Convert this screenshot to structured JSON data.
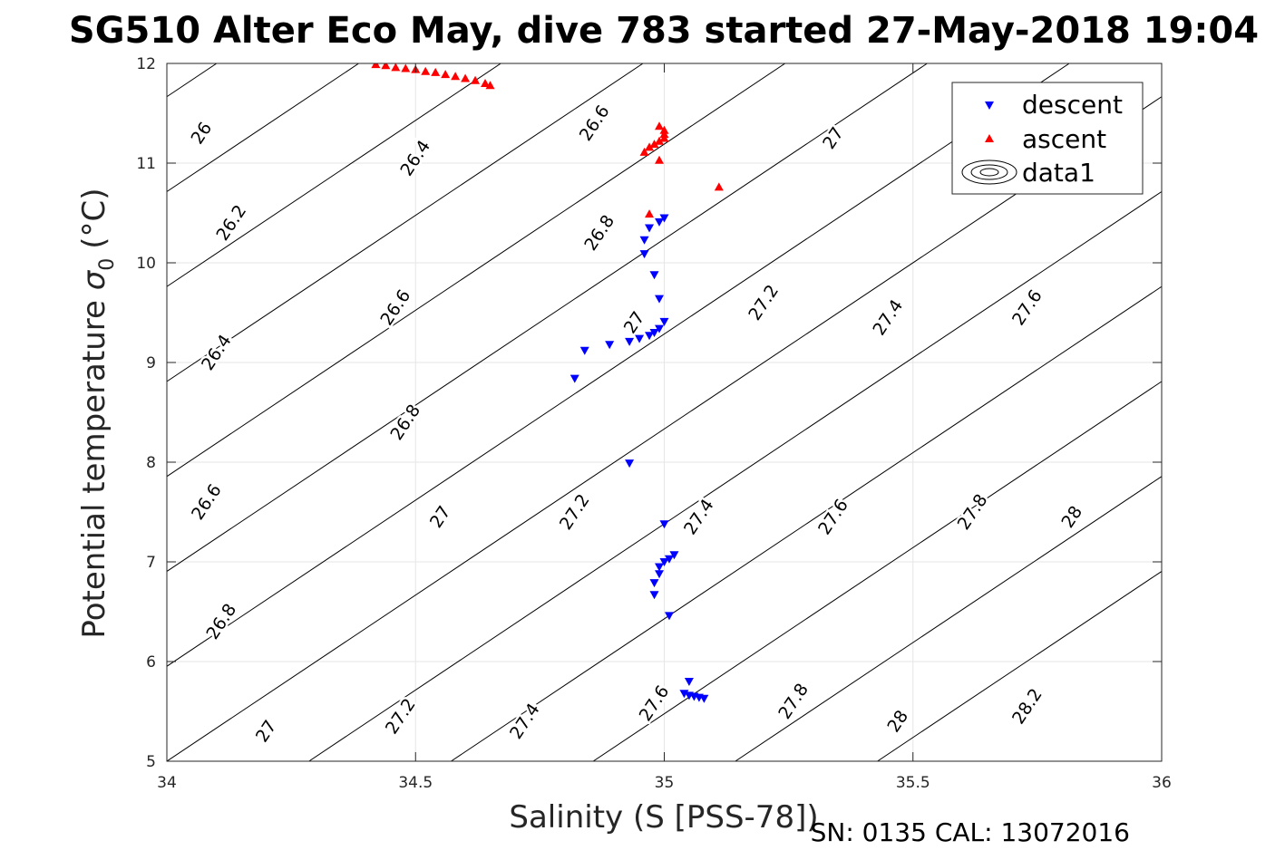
{
  "chart_data": {
    "type": "scatter",
    "title": "SG510 Alter Eco May, dive 783 started 27-May-2018 19:04",
    "xlabel": "Salinity (S [PSS-78])",
    "ylabel": "Potential temperature",
    "ylabel_symbol": "σ",
    "ylabel_subscript": "0",
    "ylabel_unit": "(°C)",
    "footnote": "SN: 0135  CAL: 13072016",
    "xlim": [
      34,
      36
    ],
    "ylim": [
      5,
      12
    ],
    "xticks": [
      34,
      34.5,
      35,
      35.5,
      36
    ],
    "xtick_labels": [
      "34",
      "34.5",
      "35",
      "35.5",
      "36"
    ],
    "yticks": [
      5,
      6,
      7,
      8,
      9,
      10,
      11,
      12
    ],
    "ytick_labels": [
      "5",
      "6",
      "7",
      "8",
      "9",
      "10",
      "11",
      "12"
    ],
    "grid": true,
    "legend_position": "top-right",
    "legend": [
      "descent",
      "ascent",
      "data1"
    ],
    "contour_levels": [
      26,
      26.2,
      26.4,
      26.6,
      26.8,
      27,
      27.2,
      27.4,
      27.6,
      27.8,
      28,
      28.2
    ],
    "contour_labels": [
      {
        "text": "26",
        "s": 34.07,
        "t": 11.3
      },
      {
        "text": "26.2",
        "s": 34.13,
        "t": 10.4
      },
      {
        "text": "26.4",
        "s": 34.5,
        "t": 11.05
      },
      {
        "text": "26.4",
        "s": 34.1,
        "t": 9.1
      },
      {
        "text": "26.6",
        "s": 34.86,
        "t": 11.4
      },
      {
        "text": "26.6",
        "s": 34.46,
        "t": 9.55
      },
      {
        "text": "26.6",
        "s": 34.08,
        "t": 7.6
      },
      {
        "text": "26.8",
        "s": 34.87,
        "t": 10.3
      },
      {
        "text": "26.8",
        "s": 34.48,
        "t": 8.4
      },
      {
        "text": "26.8",
        "s": 34.11,
        "t": 6.4
      },
      {
        "text": "27",
        "s": 35.34,
        "t": 11.25
      },
      {
        "text": "27",
        "s": 34.94,
        "t": 9.4
      },
      {
        "text": "27",
        "s": 34.55,
        "t": 7.45
      },
      {
        "text": "27",
        "s": 34.2,
        "t": 5.3
      },
      {
        "text": "27.2",
        "s": 35.2,
        "t": 9.6
      },
      {
        "text": "27.2",
        "s": 34.82,
        "t": 7.5
      },
      {
        "text": "27.2",
        "s": 34.47,
        "t": 5.45
      },
      {
        "text": "27.4",
        "s": 35.45,
        "t": 9.45
      },
      {
        "text": "27.4",
        "s": 35.07,
        "t": 7.45
      },
      {
        "text": "27.4",
        "s": 34.72,
        "t": 5.4
      },
      {
        "text": "27.6",
        "s": 35.73,
        "t": 9.55
      },
      {
        "text": "27.6",
        "s": 35.34,
        "t": 7.45
      },
      {
        "text": "27.6",
        "s": 34.98,
        "t": 5.58
      },
      {
        "text": "27.8",
        "s": 35.62,
        "t": 7.5
      },
      {
        "text": "27.8",
        "s": 35.26,
        "t": 5.6
      },
      {
        "text": "28",
        "s": 35.82,
        "t": 7.45
      },
      {
        "text": "28",
        "s": 35.47,
        "t": 5.4
      },
      {
        "text": "28.2",
        "s": 35.73,
        "t": 5.55
      }
    ],
    "series": [
      {
        "name": "descent",
        "color": "#0000ff",
        "marker": "triangle-down",
        "points": [
          [
            34.82,
            8.84
          ],
          [
            34.84,
            9.12
          ],
          [
            34.89,
            9.18
          ],
          [
            34.93,
            9.21
          ],
          [
            34.95,
            9.24
          ],
          [
            34.97,
            9.27
          ],
          [
            34.98,
            9.3
          ],
          [
            34.99,
            9.34
          ],
          [
            35.0,
            9.41
          ],
          [
            34.99,
            9.64
          ],
          [
            34.98,
            9.88
          ],
          [
            34.96,
            10.09
          ],
          [
            34.96,
            10.23
          ],
          [
            34.97,
            10.35
          ],
          [
            34.99,
            10.41
          ],
          [
            35.0,
            10.45
          ],
          [
            34.93,
            7.99
          ],
          [
            35.0,
            7.38
          ],
          [
            35.02,
            7.07
          ],
          [
            35.01,
            7.03
          ],
          [
            35.0,
            7.0
          ],
          [
            34.99,
            6.95
          ],
          [
            34.99,
            6.88
          ],
          [
            34.98,
            6.79
          ],
          [
            34.98,
            6.67
          ],
          [
            35.01,
            6.46
          ],
          [
            35.05,
            5.8
          ],
          [
            35.04,
            5.68
          ],
          [
            35.05,
            5.66
          ],
          [
            35.06,
            5.65
          ],
          [
            35.07,
            5.64
          ],
          [
            35.08,
            5.63
          ]
        ]
      },
      {
        "name": "ascent",
        "color": "#ff0000",
        "marker": "triangle-up",
        "points": [
          [
            34.42,
            11.99
          ],
          [
            34.44,
            11.98
          ],
          [
            34.46,
            11.96
          ],
          [
            34.48,
            11.95
          ],
          [
            34.5,
            11.94
          ],
          [
            34.52,
            11.92
          ],
          [
            34.54,
            11.91
          ],
          [
            34.56,
            11.89
          ],
          [
            34.58,
            11.87
          ],
          [
            34.6,
            11.85
          ],
          [
            34.62,
            11.83
          ],
          [
            34.64,
            11.8
          ],
          [
            34.65,
            11.78
          ],
          [
            34.97,
            10.49
          ],
          [
            35.11,
            10.76
          ],
          [
            34.99,
            11.03
          ],
          [
            34.96,
            11.11
          ],
          [
            34.97,
            11.16
          ],
          [
            34.98,
            11.19
          ],
          [
            34.99,
            11.22
          ],
          [
            35.0,
            11.25
          ],
          [
            35.0,
            11.29
          ],
          [
            35.0,
            11.33
          ],
          [
            34.99,
            11.37
          ]
        ]
      }
    ]
  }
}
